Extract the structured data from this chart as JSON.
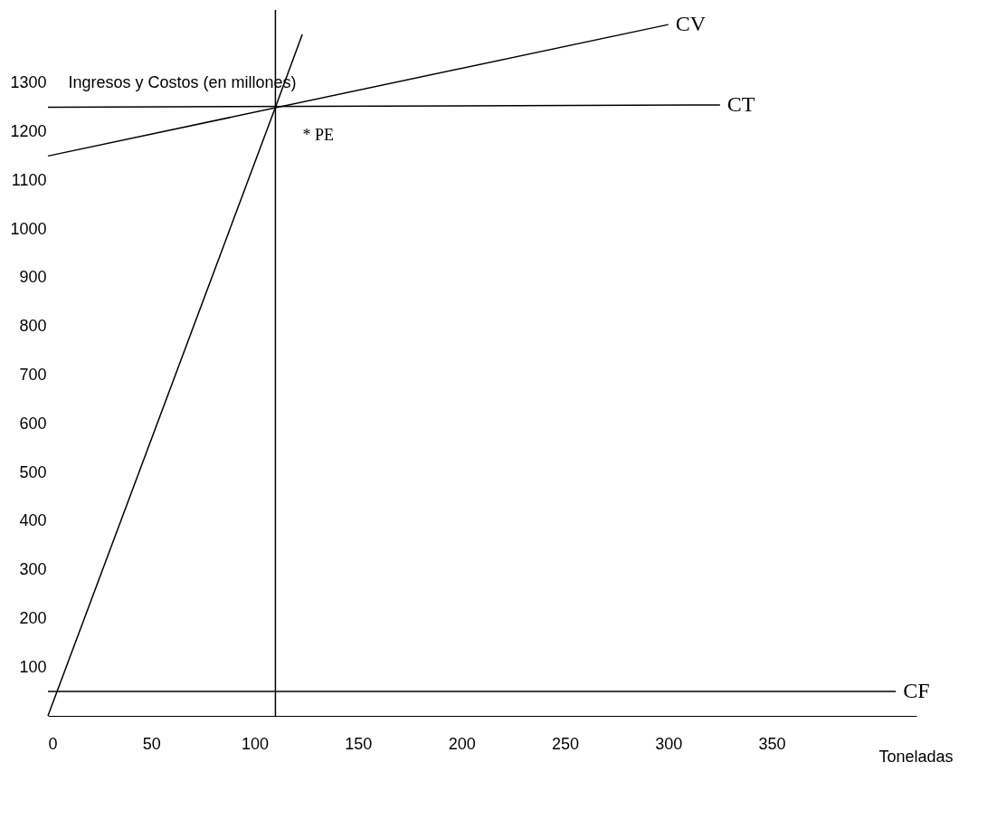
{
  "chart_data": {
    "type": "line",
    "xlabel": "Toneladas",
    "ylabel": "Ingresos y Costos (en millones)",
    "xlim": [
      0,
      420
    ],
    "xticks": [
      0,
      50,
      100,
      150,
      200,
      250,
      300,
      350
    ],
    "ylim": [
      0,
      1450
    ],
    "yticks": [
      100,
      200,
      300,
      400,
      500,
      600,
      700,
      800,
      900,
      1000,
      1100,
      1200,
      1300
    ],
    "grid": false,
    "legend": false,
    "marker": "none",
    "line_style": "solid",
    "series": [
      {
        "color": "#000000",
        "x": [
          0,
          110,
          123
        ],
        "values": [
          0,
          1250,
          1400
        ]
      },
      {
        "name": "CV",
        "color": "#000000",
        "x": [
          0,
          300
        ],
        "values": [
          1150,
          1420
        ]
      },
      {
        "name": "CT",
        "color": "#000000",
        "x": [
          0,
          325
        ],
        "values": [
          1250,
          1255
        ]
      },
      {
        "name": "CF",
        "color": "#000000",
        "x": [
          0,
          410
        ],
        "values": [
          50,
          50
        ]
      }
    ],
    "ref_lines": [
      {
        "axis": "x",
        "value": 110
      }
    ],
    "annotations": [
      {
        "text": "* PE",
        "x": 110,
        "y": 1250
      }
    ]
  }
}
